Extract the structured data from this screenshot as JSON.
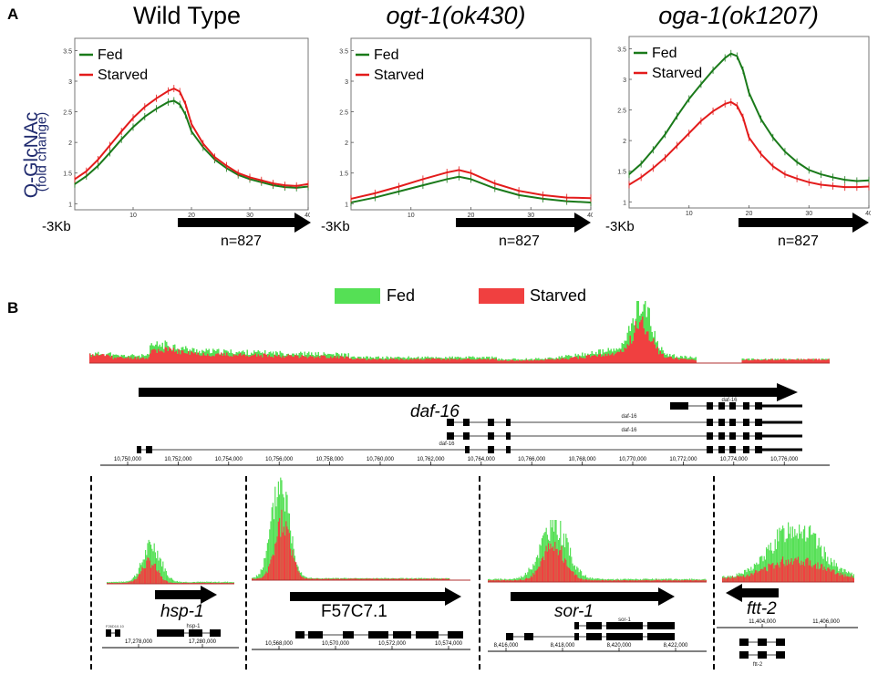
{
  "panel_a": {
    "label": "A",
    "y_axis_title": "O-GlcNAc",
    "y_axis_subtitle": "(fold change)",
    "start_label": "-3Kb",
    "n_label": "n=827",
    "legend": [
      "Fed",
      "Starved"
    ]
  },
  "panel_b": {
    "label": "B",
    "legend": [
      "Fed",
      "Starved"
    ],
    "main_gene": "daf-16",
    "transcript_label": "daf-16",
    "main_ticks": [
      "10,750,000",
      "10,752,000",
      "10,754,000",
      "10,756,000",
      "10,758,000",
      "10,760,000",
      "10,762,000",
      "10,764,000",
      "10,766,000",
      "10,768,000",
      "10,770,000",
      "10,772,000",
      "10,774,000",
      "10,776,000"
    ],
    "sub_genes": [
      {
        "name": "hsp-1",
        "italic": true,
        "transcript": "hsp-1",
        "prefix": "F26D10.10",
        "ticks": [
          "17,278,000",
          "17,280,000"
        ]
      },
      {
        "name": "F57C7.1",
        "italic": false,
        "transcript": "",
        "prefix": "",
        "ticks": [
          "10,568,000",
          "10,570,000",
          "10,572,000",
          "10,574,000"
        ]
      },
      {
        "name": "sor-1",
        "italic": true,
        "transcript": "sor-1",
        "prefix": "",
        "ticks": [
          "8,416,000",
          "8,418,000",
          "8,420,000",
          "8,422,000"
        ]
      },
      {
        "name": "ftt-2",
        "italic": true,
        "transcript": "ftt-2",
        "prefix": "",
        "ticks": [
          "11,404,000",
          "11,406,000"
        ]
      }
    ]
  },
  "colors": {
    "fed": "#1a7a1a",
    "starved": "#e31b1b",
    "fed_bright": "#55e055",
    "starved_bright": "#f04040",
    "ylabel": "#1f2a6e"
  },
  "chart_data": [
    {
      "type": "line",
      "title": "Wild Type",
      "title_italic": false,
      "x_ticks": [
        "10",
        "20",
        "30",
        "40"
      ],
      "y_ticks": [
        "1",
        "1.5",
        "2",
        "2.5",
        "3",
        "3.5"
      ],
      "xlim": [
        0,
        40
      ],
      "ylim": [
        0.9,
        3.7
      ],
      "series": [
        {
          "name": "Fed",
          "x": [
            0,
            2,
            4,
            6,
            8,
            10,
            12,
            14,
            16,
            17,
            18,
            19,
            20,
            22,
            24,
            26,
            28,
            30,
            32,
            34,
            36,
            38,
            40
          ],
          "values": [
            1.32,
            1.45,
            1.62,
            1.83,
            2.05,
            2.25,
            2.42,
            2.55,
            2.66,
            2.68,
            2.62,
            2.45,
            2.18,
            1.92,
            1.72,
            1.58,
            1.47,
            1.4,
            1.35,
            1.3,
            1.27,
            1.26,
            1.28
          ]
        },
        {
          "name": "Starved",
          "x": [
            0,
            2,
            4,
            6,
            8,
            10,
            12,
            14,
            16,
            17,
            18,
            19,
            20,
            22,
            24,
            26,
            28,
            30,
            32,
            34,
            36,
            38,
            40
          ],
          "values": [
            1.4,
            1.53,
            1.72,
            1.95,
            2.18,
            2.4,
            2.58,
            2.72,
            2.84,
            2.88,
            2.83,
            2.62,
            2.3,
            1.98,
            1.76,
            1.62,
            1.5,
            1.43,
            1.38,
            1.33,
            1.3,
            1.29,
            1.32
          ]
        }
      ]
    },
    {
      "type": "line",
      "title": "ogt-1(ok430)",
      "title_italic": true,
      "x_ticks": [
        "10",
        "20",
        "30",
        "40"
      ],
      "y_ticks": [
        "1",
        "1.5",
        "2",
        "2.5",
        "3",
        "3.5"
      ],
      "xlim": [
        0,
        40
      ],
      "ylim": [
        0.9,
        3.7
      ],
      "series": [
        {
          "name": "Fed",
          "x": [
            0,
            4,
            8,
            12,
            16,
            18,
            20,
            24,
            28,
            32,
            36,
            40
          ],
          "values": [
            1.02,
            1.1,
            1.2,
            1.3,
            1.4,
            1.44,
            1.4,
            1.25,
            1.14,
            1.08,
            1.04,
            1.02
          ]
        },
        {
          "name": "Starved",
          "x": [
            0,
            4,
            8,
            12,
            16,
            18,
            20,
            24,
            28,
            32,
            36,
            40
          ],
          "values": [
            1.08,
            1.17,
            1.28,
            1.4,
            1.51,
            1.55,
            1.5,
            1.33,
            1.21,
            1.14,
            1.1,
            1.09
          ]
        }
      ]
    },
    {
      "type": "line",
      "title": "oga-1(ok1207)",
      "title_italic": true,
      "x_ticks": [
        "10",
        "20",
        "30",
        "40"
      ],
      "y_ticks": [
        "1",
        "1.5",
        "2",
        "2.5",
        "3",
        "3.5"
      ],
      "xlim": [
        0,
        40
      ],
      "ylim": [
        0.9,
        3.7
      ],
      "series": [
        {
          "name": "Fed",
          "x": [
            0,
            2,
            4,
            6,
            8,
            10,
            12,
            14,
            16,
            17,
            18,
            19,
            20,
            22,
            24,
            26,
            28,
            30,
            32,
            34,
            36,
            38,
            40
          ],
          "values": [
            1.45,
            1.62,
            1.85,
            2.1,
            2.4,
            2.68,
            2.92,
            3.15,
            3.35,
            3.42,
            3.38,
            3.15,
            2.78,
            2.35,
            2.05,
            1.82,
            1.65,
            1.52,
            1.45,
            1.4,
            1.36,
            1.34,
            1.35
          ]
        },
        {
          "name": "Starved",
          "x": [
            0,
            2,
            4,
            6,
            8,
            10,
            12,
            14,
            16,
            17,
            18,
            19,
            20,
            22,
            24,
            26,
            28,
            30,
            32,
            34,
            36,
            38,
            40
          ],
          "values": [
            1.28,
            1.4,
            1.55,
            1.72,
            1.92,
            2.12,
            2.32,
            2.48,
            2.6,
            2.63,
            2.57,
            2.38,
            2.05,
            1.78,
            1.58,
            1.45,
            1.38,
            1.32,
            1.28,
            1.26,
            1.24,
            1.24,
            1.25
          ]
        }
      ]
    }
  ]
}
